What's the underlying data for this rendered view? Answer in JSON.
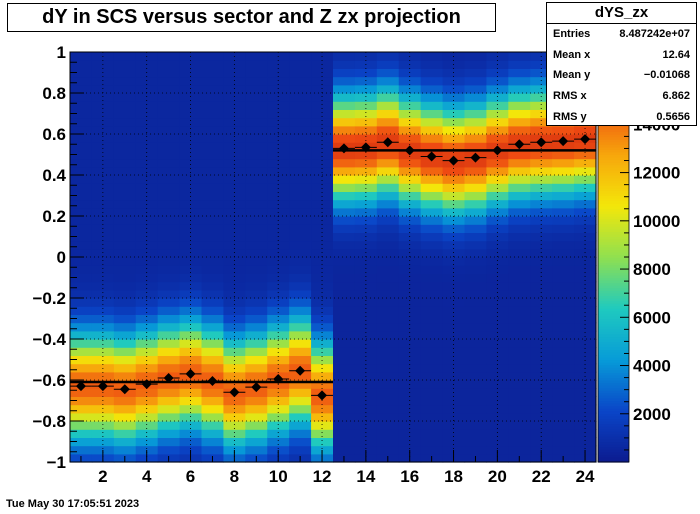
{
  "title": "dY in SCS versus sector and Z zx projection",
  "stats": {
    "name": "dYS_zx",
    "rows": [
      {
        "label": "Entries",
        "value": "8.487242e+07"
      },
      {
        "label": "Mean x",
        "value": "12.64"
      },
      {
        "label": "Mean y",
        "value": "−0.01068"
      },
      {
        "label": "RMS x",
        "value": "6.862"
      },
      {
        "label": "RMS y",
        "value": "0.5656"
      }
    ]
  },
  "footer": "Tue May 30 17:05:51 2023",
  "palette": [
    "#0c1b8f",
    "#0a45c8",
    "#079bd8",
    "#1fcabf",
    "#8fe050",
    "#f3e70a",
    "#f7a60c",
    "#ee4a12",
    "#b9190c"
  ],
  "chart_data": {
    "type": "heatmap",
    "title": "dY in SCS versus sector and Z zx projection",
    "xlim": [
      0.5,
      24.5
    ],
    "ylim": [
      -1,
      1
    ],
    "xticks": [
      2,
      4,
      6,
      8,
      10,
      12,
      14,
      16,
      18,
      20,
      22,
      24
    ],
    "yticks": [
      -1,
      -0.8,
      -0.6,
      -0.4,
      -0.2,
      0,
      0.2,
      0.4,
      0.6,
      0.8,
      1
    ],
    "ytick_labels": [
      "−1",
      "−0.8",
      "−0.6",
      "−0.4",
      "−0.2",
      "0",
      "0.2",
      "0.4",
      "0.6",
      "0.8",
      "1"
    ],
    "colorbar": {
      "range": [
        0,
        17000
      ],
      "ticks": [
        2000,
        4000,
        6000,
        8000,
        10000,
        12000,
        14000
      ]
    },
    "grid": true,
    "bands": [
      {
        "x_range": [
          0.5,
          12.5
        ],
        "center": -0.62,
        "sigma": 0.17,
        "peak": 14500,
        "floor": 600
      },
      {
        "x_range": [
          12.5,
          24.5
        ],
        "center": 0.52,
        "sigma": 0.17,
        "peak": 15500,
        "floor": 500
      }
    ],
    "profile_points": {
      "x": [
        1,
        2,
        3,
        4,
        5,
        6,
        7,
        8,
        9,
        10,
        11,
        12,
        13,
        14,
        15,
        16,
        17,
        18,
        19,
        20,
        21,
        22,
        23,
        24
      ],
      "y": [
        -0.63,
        -0.63,
        -0.645,
        -0.62,
        -0.59,
        -0.57,
        -0.605,
        -0.66,
        -0.635,
        -0.595,
        -0.555,
        -0.675,
        0.53,
        0.535,
        0.56,
        0.52,
        0.49,
        0.47,
        0.485,
        0.52,
        0.55,
        0.56,
        0.565,
        0.575
      ]
    },
    "fit_lines": [
      {
        "x_range": [
          0.5,
          12.5
        ],
        "y": -0.61
      },
      {
        "x_range": [
          12.5,
          24.5
        ],
        "y": 0.52
      }
    ]
  }
}
